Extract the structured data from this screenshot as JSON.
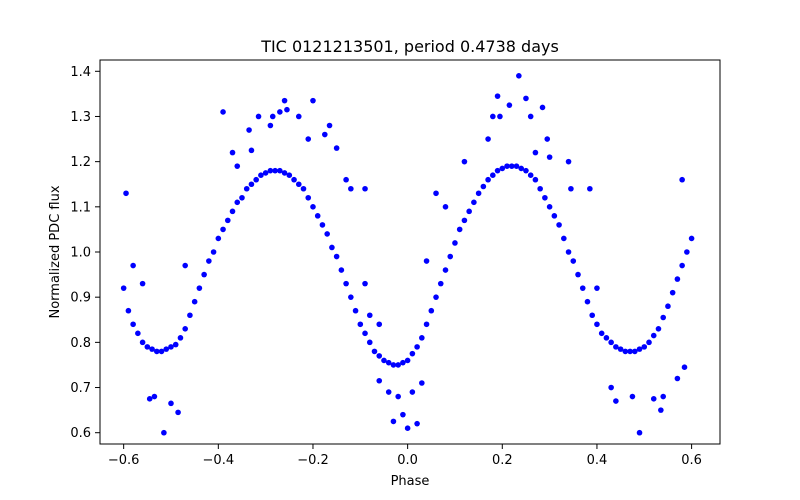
{
  "chart_data": {
    "type": "scatter",
    "title": "TIC 0121213501, period 0.4738 days",
    "xlabel": "Phase",
    "ylabel": "Normalized PDC flux",
    "xlim": [
      -0.65,
      0.66
    ],
    "ylim": [
      0.575,
      1.425
    ],
    "xticks": [
      -0.6,
      -0.4,
      -0.2,
      0.0,
      0.2,
      0.4,
      0.6
    ],
    "xtick_labels": [
      "−0.6",
      "−0.4",
      "−0.2",
      "0.0",
      "0.2",
      "0.4",
      "0.6"
    ],
    "yticks": [
      0.6,
      0.7,
      0.8,
      0.9,
      1.0,
      1.1,
      1.2,
      1.3,
      1.4
    ],
    "ytick_labels": [
      "0.6",
      "0.7",
      "0.8",
      "0.9",
      "1.0",
      "1.1",
      "1.2",
      "1.3",
      "1.4"
    ],
    "grid": false,
    "legend": "none",
    "marker_color": "#0000ff",
    "series": [
      {
        "points": [
          [
            -0.6,
            0.92
          ],
          [
            -0.59,
            0.87
          ],
          [
            -0.58,
            0.84
          ],
          [
            -0.57,
            0.82
          ],
          [
            -0.56,
            0.8
          ],
          [
            -0.55,
            0.79
          ],
          [
            -0.54,
            0.785
          ],
          [
            -0.53,
            0.78
          ],
          [
            -0.52,
            0.78
          ],
          [
            -0.51,
            0.785
          ],
          [
            -0.5,
            0.79
          ],
          [
            -0.49,
            0.795
          ],
          [
            -0.48,
            0.81
          ],
          [
            -0.47,
            0.83
          ],
          [
            -0.46,
            0.86
          ],
          [
            -0.45,
            0.89
          ],
          [
            -0.44,
            0.92
          ],
          [
            -0.43,
            0.95
          ],
          [
            -0.42,
            0.98
          ],
          [
            -0.41,
            1.0
          ],
          [
            -0.4,
            1.03
          ],
          [
            -0.39,
            1.05
          ],
          [
            -0.38,
            1.07
          ],
          [
            -0.37,
            1.09
          ],
          [
            -0.36,
            1.11
          ],
          [
            -0.35,
            1.12
          ],
          [
            -0.34,
            1.14
          ],
          [
            -0.33,
            1.15
          ],
          [
            -0.32,
            1.16
          ],
          [
            -0.31,
            1.17
          ],
          [
            -0.3,
            1.175
          ],
          [
            -0.29,
            1.18
          ],
          [
            -0.28,
            1.18
          ],
          [
            -0.27,
            1.18
          ],
          [
            -0.26,
            1.175
          ],
          [
            -0.25,
            1.17
          ],
          [
            -0.24,
            1.16
          ],
          [
            -0.23,
            1.15
          ],
          [
            -0.22,
            1.14
          ],
          [
            -0.21,
            1.12
          ],
          [
            -0.2,
            1.1
          ],
          [
            -0.19,
            1.08
          ],
          [
            -0.18,
            1.06
          ],
          [
            -0.17,
            1.04
          ],
          [
            -0.16,
            1.01
          ],
          [
            -0.15,
            0.99
          ],
          [
            -0.14,
            0.96
          ],
          [
            -0.13,
            0.93
          ],
          [
            -0.12,
            0.9
          ],
          [
            -0.11,
            0.87
          ],
          [
            -0.1,
            0.84
          ],
          [
            -0.09,
            0.82
          ],
          [
            -0.08,
            0.8
          ],
          [
            -0.07,
            0.78
          ],
          [
            -0.06,
            0.77
          ],
          [
            -0.05,
            0.76
          ],
          [
            -0.04,
            0.755
          ],
          [
            -0.03,
            0.75
          ],
          [
            -0.02,
            0.75
          ],
          [
            -0.01,
            0.755
          ],
          [
            0.0,
            0.76
          ],
          [
            0.01,
            0.775
          ],
          [
            0.02,
            0.79
          ],
          [
            0.03,
            0.81
          ],
          [
            0.04,
            0.84
          ],
          [
            0.05,
            0.87
          ],
          [
            0.06,
            0.9
          ],
          [
            0.07,
            0.93
          ],
          [
            0.08,
            0.96
          ],
          [
            0.09,
            0.99
          ],
          [
            0.1,
            1.02
          ],
          [
            0.11,
            1.05
          ],
          [
            0.12,
            1.07
          ],
          [
            0.13,
            1.09
          ],
          [
            0.14,
            1.11
          ],
          [
            0.15,
            1.13
          ],
          [
            0.16,
            1.145
          ],
          [
            0.17,
            1.16
          ],
          [
            0.18,
            1.17
          ],
          [
            0.19,
            1.18
          ],
          [
            0.2,
            1.185
          ],
          [
            0.21,
            1.19
          ],
          [
            0.22,
            1.19
          ],
          [
            0.23,
            1.19
          ],
          [
            0.24,
            1.185
          ],
          [
            0.25,
            1.18
          ],
          [
            0.26,
            1.17
          ],
          [
            0.27,
            1.16
          ],
          [
            0.28,
            1.14
          ],
          [
            0.29,
            1.12
          ],
          [
            0.3,
            1.1
          ],
          [
            0.31,
            1.08
          ],
          [
            0.32,
            1.06
          ],
          [
            0.33,
            1.03
          ],
          [
            0.34,
            1.0
          ],
          [
            0.35,
            0.98
          ],
          [
            0.36,
            0.95
          ],
          [
            0.37,
            0.92
          ],
          [
            0.38,
            0.89
          ],
          [
            0.39,
            0.86
          ],
          [
            0.4,
            0.84
          ],
          [
            0.41,
            0.82
          ],
          [
            0.42,
            0.81
          ],
          [
            0.43,
            0.8
          ],
          [
            0.44,
            0.79
          ],
          [
            0.45,
            0.785
          ],
          [
            0.46,
            0.78
          ],
          [
            0.47,
            0.78
          ],
          [
            0.48,
            0.78
          ],
          [
            0.49,
            0.785
          ],
          [
            0.5,
            0.79
          ],
          [
            0.51,
            0.8
          ],
          [
            0.52,
            0.815
          ],
          [
            0.53,
            0.83
          ],
          [
            0.54,
            0.855
          ],
          [
            0.55,
            0.88
          ],
          [
            0.56,
            0.91
          ],
          [
            0.57,
            0.94
          ],
          [
            0.58,
            0.97
          ],
          [
            0.59,
            1.0
          ],
          [
            0.6,
            1.03
          ],
          [
            -0.595,
            1.13
          ],
          [
            -0.58,
            0.97
          ],
          [
            -0.56,
            0.93
          ],
          [
            -0.545,
            0.675
          ],
          [
            -0.535,
            0.68
          ],
          [
            -0.515,
            0.6
          ],
          [
            -0.5,
            0.665
          ],
          [
            -0.485,
            0.645
          ],
          [
            -0.47,
            0.97
          ],
          [
            -0.39,
            1.31
          ],
          [
            -0.37,
            1.22
          ],
          [
            -0.36,
            1.19
          ],
          [
            -0.335,
            1.27
          ],
          [
            -0.33,
            1.225
          ],
          [
            -0.315,
            1.3
          ],
          [
            -0.29,
            1.28
          ],
          [
            -0.285,
            1.3
          ],
          [
            -0.27,
            1.31
          ],
          [
            -0.26,
            1.335
          ],
          [
            -0.255,
            1.315
          ],
          [
            -0.23,
            1.3
          ],
          [
            -0.2,
            1.335
          ],
          [
            -0.21,
            1.25
          ],
          [
            -0.175,
            1.26
          ],
          [
            -0.165,
            1.28
          ],
          [
            -0.15,
            1.23
          ],
          [
            -0.13,
            1.16
          ],
          [
            -0.12,
            1.14
          ],
          [
            -0.09,
            1.14
          ],
          [
            -0.09,
            0.93
          ],
          [
            -0.08,
            0.86
          ],
          [
            -0.06,
            0.84
          ],
          [
            -0.06,
            0.715
          ],
          [
            -0.04,
            0.69
          ],
          [
            -0.03,
            0.625
          ],
          [
            -0.02,
            0.68
          ],
          [
            -0.01,
            0.64
          ],
          [
            0.0,
            0.61
          ],
          [
            0.01,
            0.69
          ],
          [
            0.02,
            0.62
          ],
          [
            0.03,
            0.71
          ],
          [
            0.04,
            0.98
          ],
          [
            0.06,
            1.13
          ],
          [
            0.08,
            1.1
          ],
          [
            0.12,
            1.2
          ],
          [
            0.17,
            1.25
          ],
          [
            0.18,
            1.3
          ],
          [
            0.19,
            1.345
          ],
          [
            0.195,
            1.3
          ],
          [
            0.215,
            1.325
          ],
          [
            0.235,
            1.39
          ],
          [
            0.25,
            1.34
          ],
          [
            0.285,
            1.32
          ],
          [
            0.26,
            1.3
          ],
          [
            0.27,
            1.22
          ],
          [
            0.295,
            1.25
          ],
          [
            0.3,
            1.21
          ],
          [
            0.34,
            1.2
          ],
          [
            0.345,
            1.14
          ],
          [
            0.385,
            1.14
          ],
          [
            0.4,
            0.92
          ],
          [
            0.43,
            0.7
          ],
          [
            0.44,
            0.67
          ],
          [
            0.475,
            0.68
          ],
          [
            0.49,
            0.6
          ],
          [
            0.52,
            0.675
          ],
          [
            0.535,
            0.65
          ],
          [
            0.54,
            0.68
          ],
          [
            0.57,
            0.72
          ],
          [
            0.585,
            0.745
          ],
          [
            0.58,
            1.16
          ]
        ]
      }
    ]
  }
}
